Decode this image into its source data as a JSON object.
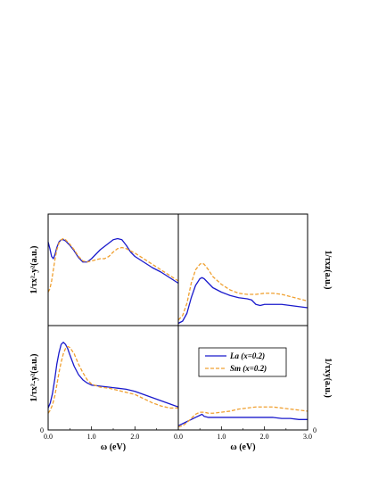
{
  "colors": {
    "la": "#1a1acc",
    "sm": "#f0a030",
    "frame": "#000000"
  },
  "legend": {
    "la_label": "La (x=0.2)",
    "sm_label": "Sm (x=0.2)"
  },
  "chart_data": [
    {
      "type": "line",
      "panel": "top-left",
      "ylabel": "1/τx²-y²(a.u.)",
      "xlim": [
        0,
        3
      ],
      "ylim": [
        0,
        1
      ],
      "y_tick_labels": [],
      "series": [
        {
          "name": "La (x=0.2)",
          "x": [
            0,
            0.04,
            0.08,
            0.12,
            0.16,
            0.2,
            0.25,
            0.3,
            0.35,
            0.4,
            0.45,
            0.5,
            0.6,
            0.7,
            0.8,
            0.9,
            1.0,
            1.1,
            1.2,
            1.3,
            1.4,
            1.5,
            1.6,
            1.7,
            1.8,
            1.9,
            2.0,
            2.2,
            2.4,
            2.6,
            2.8,
            3.0
          ],
          "y": [
            0.75,
            0.69,
            0.62,
            0.6,
            0.64,
            0.7,
            0.75,
            0.77,
            0.77,
            0.76,
            0.74,
            0.72,
            0.67,
            0.61,
            0.57,
            0.57,
            0.6,
            0.64,
            0.68,
            0.71,
            0.74,
            0.77,
            0.78,
            0.77,
            0.72,
            0.66,
            0.62,
            0.57,
            0.52,
            0.48,
            0.43,
            0.38
          ]
        },
        {
          "name": "Sm (x=0.2)",
          "x": [
            0,
            0.04,
            0.08,
            0.12,
            0.16,
            0.2,
            0.25,
            0.3,
            0.35,
            0.4,
            0.45,
            0.5,
            0.6,
            0.7,
            0.8,
            0.9,
            1.0,
            1.1,
            1.2,
            1.3,
            1.4,
            1.5,
            1.6,
            1.7,
            1.8,
            1.9,
            2.0,
            2.2,
            2.4,
            2.6,
            2.8,
            3.0
          ],
          "y": [
            0.3,
            0.33,
            0.4,
            0.5,
            0.6,
            0.68,
            0.74,
            0.77,
            0.78,
            0.77,
            0.75,
            0.73,
            0.68,
            0.62,
            0.58,
            0.57,
            0.58,
            0.59,
            0.6,
            0.6,
            0.62,
            0.66,
            0.69,
            0.7,
            0.69,
            0.67,
            0.65,
            0.6,
            0.55,
            0.5,
            0.45,
            0.4
          ]
        }
      ]
    },
    {
      "type": "line",
      "panel": "top-right",
      "ylabel": "1/τxz(a.u.)",
      "xlim": [
        0,
        3
      ],
      "ylim": [
        0,
        1
      ],
      "y_tick_labels": [],
      "series": [
        {
          "name": "La (x=0.2)",
          "x": [
            0,
            0.1,
            0.2,
            0.3,
            0.4,
            0.5,
            0.55,
            0.6,
            0.7,
            0.8,
            1.0,
            1.2,
            1.4,
            1.6,
            1.7,
            1.8,
            1.9,
            2.0,
            2.2,
            2.4,
            2.6,
            2.8,
            3.0
          ],
          "y": [
            0.02,
            0.04,
            0.11,
            0.25,
            0.36,
            0.42,
            0.43,
            0.42,
            0.38,
            0.34,
            0.3,
            0.27,
            0.25,
            0.24,
            0.23,
            0.19,
            0.18,
            0.19,
            0.19,
            0.19,
            0.18,
            0.17,
            0.16
          ]
        },
        {
          "name": "Sm (x=0.2)",
          "x": [
            0,
            0.1,
            0.2,
            0.3,
            0.4,
            0.5,
            0.55,
            0.6,
            0.7,
            0.8,
            1.0,
            1.2,
            1.4,
            1.6,
            1.8,
            2.0,
            2.2,
            2.4,
            2.6,
            2.8,
            3.0
          ],
          "y": [
            0.05,
            0.09,
            0.2,
            0.38,
            0.5,
            0.55,
            0.56,
            0.55,
            0.5,
            0.44,
            0.37,
            0.32,
            0.29,
            0.28,
            0.28,
            0.29,
            0.29,
            0.28,
            0.26,
            0.24,
            0.22
          ]
        }
      ]
    },
    {
      "type": "line",
      "panel": "bottom-left",
      "ylabel": "1/τx²-y²(a.u.)",
      "xlim": [
        0,
        3
      ],
      "ylim": [
        0,
        1
      ],
      "x_ticks": [
        0,
        1,
        2,
        3
      ],
      "x_tick_labels": [
        "0.0",
        "1.0",
        "2.0",
        ""
      ],
      "y_tick_labels": [
        "0"
      ],
      "xlabel": "ω (eV)",
      "series": [
        {
          "name": "La (x=0.2)",
          "x": [
            0,
            0.05,
            0.1,
            0.15,
            0.2,
            0.25,
            0.3,
            0.35,
            0.4,
            0.45,
            0.5,
            0.6,
            0.7,
            0.8,
            0.9,
            1.0,
            1.2,
            1.4,
            1.6,
            1.8,
            2.0,
            2.2,
            2.4,
            2.6,
            2.8,
            3.0
          ],
          "y": [
            0.21,
            0.26,
            0.35,
            0.48,
            0.63,
            0.74,
            0.82,
            0.84,
            0.82,
            0.78,
            0.72,
            0.61,
            0.53,
            0.48,
            0.45,
            0.43,
            0.42,
            0.41,
            0.4,
            0.39,
            0.37,
            0.34,
            0.31,
            0.28,
            0.25,
            0.22
          ]
        },
        {
          "name": "Sm (x=0.2)",
          "x": [
            0,
            0.05,
            0.1,
            0.15,
            0.2,
            0.25,
            0.3,
            0.35,
            0.4,
            0.45,
            0.5,
            0.6,
            0.7,
            0.8,
            0.9,
            1.0,
            1.2,
            1.4,
            1.6,
            1.8,
            2.0,
            2.2,
            2.4,
            2.6,
            2.8,
            3.0
          ],
          "y": [
            0.16,
            0.19,
            0.24,
            0.32,
            0.43,
            0.55,
            0.65,
            0.73,
            0.78,
            0.8,
            0.79,
            0.73,
            0.63,
            0.55,
            0.48,
            0.44,
            0.41,
            0.4,
            0.38,
            0.36,
            0.34,
            0.3,
            0.26,
            0.23,
            0.21,
            0.21
          ]
        }
      ]
    },
    {
      "type": "line",
      "panel": "bottom-right",
      "ylabel": "1/τxy(a.u.)",
      "xlim": [
        0,
        3
      ],
      "ylim": [
        0,
        1
      ],
      "x_ticks": [
        0,
        1,
        2,
        3
      ],
      "x_tick_labels": [
        "0.0",
        "1.0",
        "2.0",
        "3.0"
      ],
      "y_tick_labels": [
        "0"
      ],
      "xlabel": "ω (eV)",
      "series": [
        {
          "name": "La (x=0.2)",
          "x": [
            0,
            0.1,
            0.2,
            0.3,
            0.4,
            0.5,
            0.55,
            0.6,
            0.7,
            0.8,
            1.0,
            1.2,
            1.4,
            1.6,
            1.8,
            2.0,
            2.2,
            2.4,
            2.6,
            2.8,
            3.0
          ],
          "y": [
            0.04,
            0.06,
            0.08,
            0.1,
            0.12,
            0.14,
            0.15,
            0.13,
            0.12,
            0.12,
            0.12,
            0.12,
            0.12,
            0.12,
            0.12,
            0.12,
            0.12,
            0.11,
            0.11,
            0.1,
            0.1
          ]
        },
        {
          "name": "Sm (x=0.2)",
          "x": [
            0,
            0.1,
            0.2,
            0.3,
            0.4,
            0.5,
            0.55,
            0.6,
            0.7,
            0.8,
            1.0,
            1.2,
            1.4,
            1.6,
            1.8,
            2.0,
            2.2,
            2.4,
            2.6,
            2.8,
            3.0
          ],
          "y": [
            0.03,
            0.04,
            0.07,
            0.11,
            0.15,
            0.17,
            0.17,
            0.17,
            0.16,
            0.16,
            0.17,
            0.18,
            0.2,
            0.21,
            0.22,
            0.22,
            0.22,
            0.21,
            0.2,
            0.19,
            0.18
          ]
        }
      ]
    }
  ]
}
